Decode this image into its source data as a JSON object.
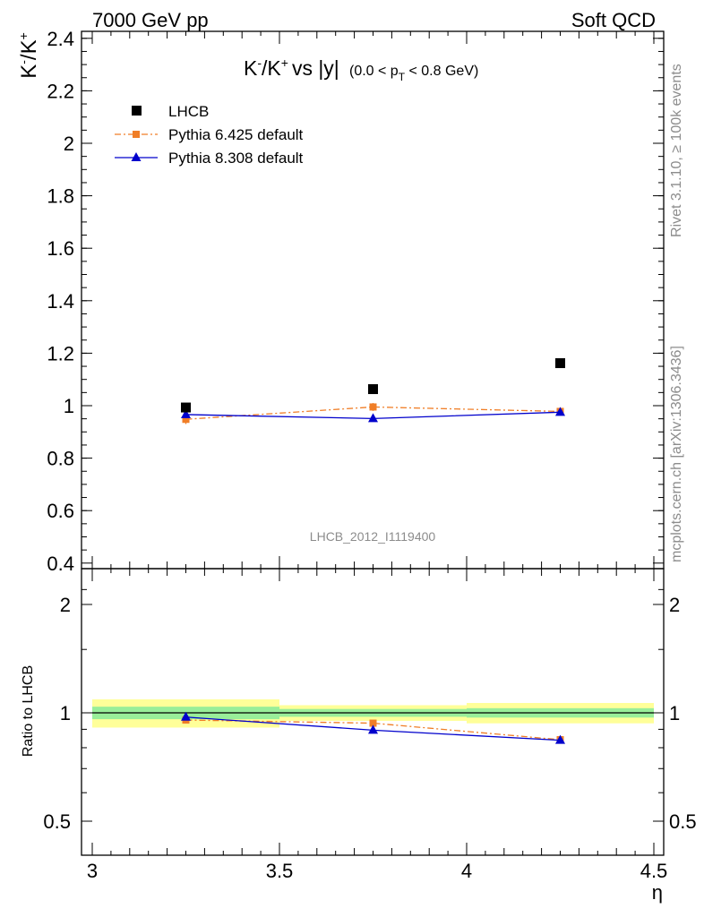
{
  "header": {
    "left": "7000 GeV pp",
    "right": "Soft QCD"
  },
  "side_text": {
    "rivet": "Rivet 3.1.10, ≥ 100k events",
    "mcplots": "mcplots.cern.ch [arXiv:1306.3436]"
  },
  "chart_data": {
    "type": "scatter",
    "title": "K⁻/K⁺ vs |y|",
    "title_parts": {
      "main": "vs |y|",
      "range": "(0.0 < p",
      "range_sub": "T",
      "range_tail": " < 0.8 GeV)"
    },
    "analysis_label": "LHCB_2012_I1119400",
    "xlabel": "η",
    "ylabel": "K⁻/K⁺",
    "xlim": [
      3.0,
      4.5
    ],
    "ylim": [
      0.4,
      2.45
    ],
    "x_ticks": [
      "3",
      "3.5",
      "4",
      "4.5"
    ],
    "x_tick_values": [
      3.0,
      3.5,
      4.0,
      4.5
    ],
    "y_ticks": [
      "0.4",
      "0.6",
      "0.8",
      "1",
      "1.2",
      "1.4",
      "1.6",
      "1.8",
      "2",
      "2.2",
      "2.4"
    ],
    "y_tick_values": [
      0.4,
      0.6,
      0.8,
      1.0,
      1.2,
      1.4,
      1.6,
      1.8,
      2.0,
      2.2,
      2.4
    ],
    "legend_position": "top-left",
    "series": [
      {
        "name": "LHCB",
        "color": "#000000",
        "marker": "square",
        "x": [
          3.25,
          3.75,
          4.25
        ],
        "y": [
          0.993,
          1.063,
          1.162
        ],
        "x_bins": [
          [
            3.0,
            3.5
          ],
          [
            3.5,
            4.0
          ],
          [
            4.0,
            4.5
          ]
        ],
        "rel_err_stat": [
          0.04,
          0.025,
          0.03
        ],
        "rel_err_total": [
          0.09,
          0.05,
          0.065
        ]
      },
      {
        "name": "Pythia 6.425 default",
        "color": "#f07e27",
        "marker": "square",
        "line": "dashdot",
        "x": [
          3.25,
          3.75,
          4.25
        ],
        "y": [
          0.948,
          0.995,
          0.978
        ],
        "yerr": [
          0.018,
          0.015,
          0.012
        ]
      },
      {
        "name": "Pythia 8.308 default",
        "color": "#0000cc",
        "marker": "triangle",
        "line": "solid",
        "x": [
          3.25,
          3.75,
          4.25
        ],
        "y": [
          0.966,
          0.951,
          0.975
        ],
        "yerr": [
          0.008,
          0.008,
          0.008
        ]
      }
    ],
    "ratio": {
      "ylabel": "Ratio to LHCB",
      "ylim": [
        0.4,
        2.3
      ],
      "y_ticks": [
        "0.5",
        "1",
        "2"
      ],
      "y_tick_values": [
        0.5,
        1.0,
        2.0
      ],
      "series_values": {
        "Pythia 6.425 default": [
          0.955,
          0.936,
          0.842
        ],
        "Pythia 8.308 default": [
          0.973,
          0.895,
          0.839
        ]
      },
      "band_colors": {
        "stat": "#99ee99",
        "total": "#ffff99"
      }
    }
  }
}
